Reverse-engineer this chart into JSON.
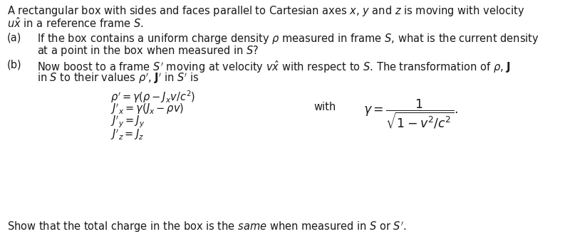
{
  "bg_color": "#ffffff",
  "text_color": "#1a1a1a",
  "figsize": [
    7.93,
    3.36
  ],
  "dpi": 100,
  "font_family": "DejaVu Serif",
  "fs": 10.5,
  "intro_line1": "A rectangular box with sides and faces parallel to Cartesian axes $x$, $y$ and $z$ is moving with velocity",
  "intro_line2": "$u\\hat{x}$ in a reference frame $S$.",
  "part_a_line1": "If the box contains a uniform charge density $\\rho$ measured in frame $S$, what is the current density",
  "part_a_line2": "at a point in the box when measured in $S$?",
  "part_b_line1": "Now boost to a frame $S'$ moving at velocity $v\\hat{x}$ with respect to $S$. The transformation of $\\rho$, $\\mathbf{J}$",
  "part_b_line2": "in $S$ to their values $\\rho'$, $\\mathbf{J}'$ in $S'$ is",
  "eq1": "$\\rho' = \\gamma(\\rho - J_x v/c^2)$",
  "eq2": "$J'_x = \\gamma(J_x - \\rho v)$",
  "eq3": "$J'_y = J_y$",
  "eq4": "$J'_z = J_z$",
  "gamma_eq": "$\\gamma = \\dfrac{1}{\\sqrt{1 - v^2/c^2}}.$",
  "final_line": "Show that the total charge in the box is the $\\mathit{same}$ when measured in $S$ or $S'$."
}
